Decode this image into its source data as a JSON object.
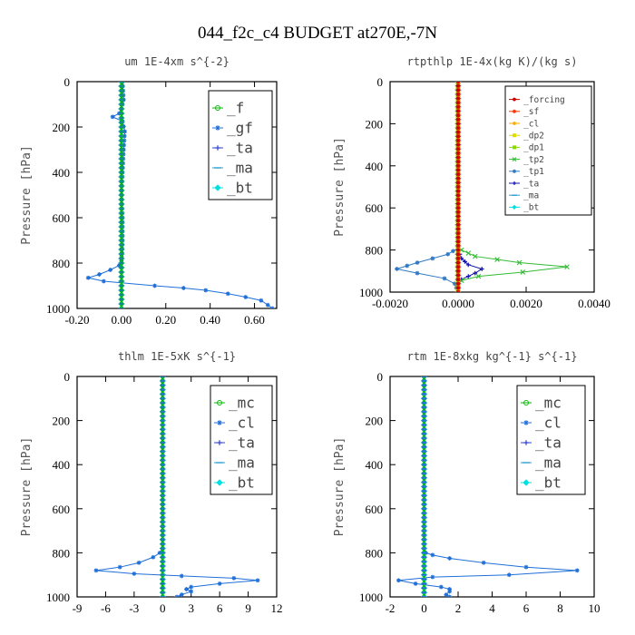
{
  "figure": {
    "title": "044_f2c_c4  BUDGET at270E,-7N"
  },
  "chart_data": [
    {
      "type": "line",
      "title": "um  1E-4xm s^{-2}",
      "ylabel": "Pressure [hPa]",
      "xlim": [
        -0.2,
        0.7
      ],
      "ylim": [
        1000,
        0
      ],
      "xticks": [
        -0.2,
        0,
        0.2,
        0.4,
        0.6
      ],
      "xticklabels": [
        "-0.20",
        "0.00",
        "0.20",
        "0.40",
        "0.60"
      ],
      "yticks": [
        0,
        200,
        400,
        600,
        800,
        1000
      ],
      "yticklabels": [
        "0",
        "200",
        "400",
        "600",
        "800",
        "1000"
      ],
      "legend_position": "top-right",
      "series": [
        {
          "name": "_f",
          "color": "#00bb00",
          "marker": "circle",
          "x": [
            0.0,
            0.0,
            0.0,
            0.0,
            0.0,
            0.0,
            0.0,
            0.0,
            0.0,
            0.0,
            0.0
          ],
          "y": [
            0,
            100,
            200,
            300,
            400,
            500,
            600,
            700,
            800,
            900,
            1000
          ]
        },
        {
          "name": "_gf",
          "color": "#1f6fd8",
          "marker": "star",
          "x": [
            0.005,
            0.01,
            0.0,
            -0.01,
            -0.04,
            0.005,
            0.015,
            0.01,
            0.005,
            0.0,
            0.005,
            0.005,
            0.0,
            -0.01,
            -0.05,
            -0.1,
            -0.15,
            -0.08,
            0.15,
            0.28,
            0.38,
            0.48,
            0.56,
            0.63,
            0.66,
            0.68
          ],
          "y": [
            0,
            80,
            120,
            140,
            155,
            175,
            220,
            300,
            400,
            500,
            600,
            700,
            790,
            810,
            830,
            850,
            865,
            880,
            900,
            910,
            920,
            935,
            950,
            965,
            985,
            1000
          ]
        },
        {
          "name": "_ta",
          "color": "#2b3fd8",
          "marker": "plus",
          "x": [
            0,
            0,
            0,
            0,
            0,
            0
          ],
          "y": [
            0,
            200,
            400,
            600,
            800,
            1000
          ]
        },
        {
          "name": "_ma",
          "color": "#2a9fd0",
          "marker": "dash",
          "x": [
            0,
            0,
            0,
            0,
            0,
            0
          ],
          "y": [
            0,
            200,
            400,
            600,
            800,
            1000
          ]
        },
        {
          "name": "_bt",
          "color": "#00e0e0",
          "marker": "diamond",
          "x": [
            0,
            0,
            0,
            0,
            0,
            0
          ],
          "y": [
            0,
            200,
            400,
            600,
            800,
            1000
          ]
        }
      ]
    },
    {
      "type": "line",
      "title": "rtpthlp  1E-4x(kg K)/(kg s)",
      "ylabel": "Pressure [hPa]",
      "xlim": [
        -0.002,
        0.004
      ],
      "ylim": [
        1000,
        0
      ],
      "xticks": [
        -0.002,
        0,
        0.002,
        0.004
      ],
      "xticklabels": [
        "-0.0020",
        "0.0000",
        "0.0020",
        "0.0040"
      ],
      "yticks": [
        0,
        200,
        400,
        600,
        800,
        1000
      ],
      "yticklabels": [
        "0",
        "200",
        "400",
        "600",
        "800",
        "1000"
      ],
      "legend_position": "top-right",
      "series": [
        {
          "name": "_forcing",
          "color": "#cc0000",
          "marker": "star",
          "x": [
            0,
            0,
            0,
            0,
            0,
            0
          ],
          "y": [
            0,
            200,
            400,
            600,
            800,
            1000
          ]
        },
        {
          "name": "_sf",
          "color": "#ff3300",
          "marker": "star",
          "x": [
            0,
            0,
            0,
            0,
            0,
            0
          ],
          "y": [
            0,
            200,
            400,
            600,
            800,
            1000
          ]
        },
        {
          "name": "_cl",
          "color": "#ffaa00",
          "marker": "star",
          "x": [
            0,
            0,
            0,
            0,
            0,
            0
          ],
          "y": [
            0,
            200,
            400,
            600,
            800,
            1000
          ]
        },
        {
          "name": "_dp2",
          "color": "#dddd00",
          "marker": "square",
          "x": [
            0,
            0,
            0,
            0,
            0,
            0
          ],
          "y": [
            0,
            200,
            400,
            600,
            800,
            1000
          ]
        },
        {
          "name": "_dp1",
          "color": "#88dd00",
          "marker": "square",
          "x": [
            0,
            0,
            0,
            0,
            0,
            0
          ],
          "y": [
            0,
            200,
            400,
            600,
            800,
            1000
          ]
        },
        {
          "name": "_tp2",
          "color": "#33bb33",
          "marker": "cross",
          "x": [
            0,
            0,
            0.0001,
            0.0005,
            0.0018,
            0.0032,
            0.0019,
            0.0006,
            0.0001,
            0,
            0
          ],
          "y": [
            0,
            780,
            800,
            830,
            860,
            880,
            905,
            925,
            945,
            965,
            1000
          ]
        },
        {
          "name": "_tp1",
          "color": "#2f79c4",
          "marker": "star",
          "x": [
            0,
            0,
            -0.0003,
            -0.0012,
            -0.0018,
            -0.0012,
            -0.0004,
            -0.0001,
            0
          ],
          "y": [
            0,
            790,
            820,
            860,
            890,
            910,
            935,
            960,
            1000
          ]
        },
        {
          "name": "_ta",
          "color": "#1111aa",
          "marker": "plus",
          "x": [
            0,
            0,
            0.0001,
            0.0003,
            0.0007,
            0.0005,
            0.0001,
            0,
            0
          ],
          "y": [
            0,
            800,
            840,
            870,
            890,
            910,
            940,
            960,
            1000
          ]
        },
        {
          "name": "_ma",
          "color": "#2a9fd0",
          "marker": "dash",
          "x": [
            0,
            0,
            0,
            0,
            0,
            0
          ],
          "y": [
            0,
            200,
            400,
            600,
            800,
            1000
          ]
        },
        {
          "name": "_bt",
          "color": "#00e0e0",
          "marker": "diamond",
          "x": [
            0,
            0,
            0,
            0,
            0,
            0
          ],
          "y": [
            0,
            200,
            400,
            600,
            800,
            1000
          ]
        }
      ]
    },
    {
      "type": "line",
      "title": "thlm  1E-5xK s^{-1}",
      "ylabel": "Pressure [hPa]",
      "xlim": [
        -9,
        12
      ],
      "ylim": [
        1000,
        0
      ],
      "xticks": [
        -9,
        -6,
        -3,
        0,
        3,
        6,
        9,
        12
      ],
      "xticklabels": [
        "-9",
        "-6",
        "-3",
        "0",
        "3",
        "6",
        "9",
        "12"
      ],
      "yticks": [
        0,
        200,
        400,
        600,
        800,
        1000
      ],
      "yticklabels": [
        "0",
        "200",
        "400",
        "600",
        "800",
        "1000"
      ],
      "legend_position": "top-right",
      "series": [
        {
          "name": "_mc",
          "color": "#00bb00",
          "marker": "circle",
          "x": [
            0,
            0,
            0,
            0,
            0,
            0,
            0,
            0,
            0,
            0,
            0
          ],
          "y": [
            0,
            100,
            200,
            300,
            400,
            500,
            600,
            700,
            800,
            900,
            1000
          ]
        },
        {
          "name": "_cl",
          "color": "#1f6fd8",
          "marker": "star",
          "x": [
            0,
            0,
            0,
            -0.3,
            -1.0,
            -2.5,
            -4.5,
            -7,
            -3,
            2,
            7.5,
            10,
            6,
            3,
            2.5,
            3,
            2,
            1.5
          ],
          "y": [
            0,
            700,
            780,
            800,
            820,
            845,
            865,
            880,
            895,
            905,
            915,
            925,
            940,
            955,
            965,
            975,
            990,
            1000
          ]
        },
        {
          "name": "_ta",
          "color": "#2b3fd8",
          "marker": "plus",
          "x": [
            0,
            0,
            0,
            0,
            0,
            0
          ],
          "y": [
            0,
            200,
            400,
            600,
            800,
            1000
          ]
        },
        {
          "name": "_ma",
          "color": "#2a9fd0",
          "marker": "dash",
          "x": [
            0,
            0,
            0,
            0,
            0,
            0
          ],
          "y": [
            0,
            200,
            400,
            600,
            800,
            1000
          ]
        },
        {
          "name": "_bt",
          "color": "#00e0e0",
          "marker": "diamond",
          "x": [
            0,
            0,
            0,
            0,
            0,
            0
          ],
          "y": [
            0,
            200,
            400,
            600,
            800,
            1000
          ]
        }
      ]
    },
    {
      "type": "line",
      "title": "rtm  1E-8xkg kg^{-1} s^{-1}",
      "ylabel": "Pressure [hPa]",
      "xlim": [
        -2,
        10
      ],
      "ylim": [
        1000,
        0
      ],
      "xticks": [
        -2,
        0,
        2,
        4,
        6,
        8,
        10
      ],
      "xticklabels": [
        "-2",
        "0",
        "2",
        "4",
        "6",
        "8",
        "10"
      ],
      "yticks": [
        0,
        200,
        400,
        600,
        800,
        1000
      ],
      "yticklabels": [
        "0",
        "200",
        "400",
        "600",
        "800",
        "1000"
      ],
      "legend_position": "top-right",
      "series": [
        {
          "name": "_mc",
          "color": "#00bb00",
          "marker": "circle",
          "x": [
            0,
            0,
            0,
            0,
            0,
            0,
            0,
            0,
            0,
            0,
            0
          ],
          "y": [
            0,
            100,
            200,
            300,
            400,
            500,
            600,
            700,
            800,
            900,
            1000
          ]
        },
        {
          "name": "_cl",
          "color": "#1f6fd8",
          "marker": "star",
          "x": [
            0,
            0,
            0,
            0.1,
            0.5,
            1.5,
            3.5,
            6,
            9,
            5,
            0.5,
            -1.5,
            -0.5,
            1,
            1.5,
            1.5,
            1.3,
            1.5
          ],
          "y": [
            0,
            700,
            780,
            800,
            810,
            825,
            845,
            865,
            880,
            900,
            910,
            925,
            940,
            955,
            965,
            975,
            990,
            1000
          ]
        },
        {
          "name": "_ta",
          "color": "#2b3fd8",
          "marker": "plus",
          "x": [
            0,
            0,
            0,
            0,
            0,
            0
          ],
          "y": [
            0,
            200,
            400,
            600,
            800,
            1000
          ]
        },
        {
          "name": "_ma",
          "color": "#2a9fd0",
          "marker": "dash",
          "x": [
            0,
            0,
            0,
            0,
            0,
            0
          ],
          "y": [
            0,
            200,
            400,
            600,
            800,
            1000
          ]
        },
        {
          "name": "_bt",
          "color": "#00e0e0",
          "marker": "diamond",
          "x": [
            0,
            0,
            0,
            0,
            0,
            0
          ],
          "y": [
            0,
            200,
            400,
            600,
            800,
            1000
          ]
        }
      ]
    }
  ]
}
